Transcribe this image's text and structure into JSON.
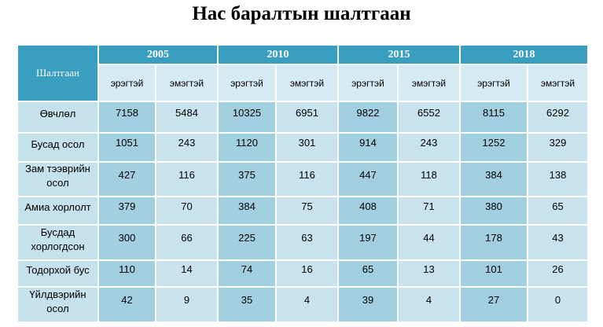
{
  "title": "Нас баралтын шалтгаан",
  "table": {
    "reason_header": "Шалтгаан",
    "years": [
      "2005",
      "2010",
      "2015",
      "2018"
    ],
    "sex_labels": [
      "эрэгтэй",
      "эмэгтэй"
    ],
    "rows": [
      {
        "label": "Өвчлөл",
        "values": [
          "7158",
          "5484",
          "10325",
          "6951",
          "9822",
          "6552",
          "8115",
          "6292"
        ]
      },
      {
        "label": "Бусад осол",
        "values": [
          "1051",
          "243",
          "1120",
          "301",
          "914",
          "243",
          "1252",
          "329"
        ]
      },
      {
        "label": "Зам тээврийн осол",
        "values": [
          "427",
          "116",
          "375",
          "116",
          "447",
          "118",
          "384",
          "138"
        ]
      },
      {
        "label": "Амиа хорлолт",
        "values": [
          "379",
          "70",
          "384",
          "75",
          "408",
          "71",
          "380",
          "65"
        ]
      },
      {
        "label": "Бусдад хорлогдсон",
        "values": [
          "300",
          "66",
          "225",
          "63",
          "197",
          "44",
          "178",
          "43"
        ]
      },
      {
        "label": "Тодорхой бус",
        "values": [
          "110",
          "14",
          "74",
          "16",
          "65",
          "13",
          "101",
          "26"
        ]
      },
      {
        "label": "Үйлдвэрийн осол",
        "values": [
          "42",
          "9",
          "35",
          "4",
          "39",
          "4",
          "27",
          "0"
        ]
      }
    ]
  }
}
